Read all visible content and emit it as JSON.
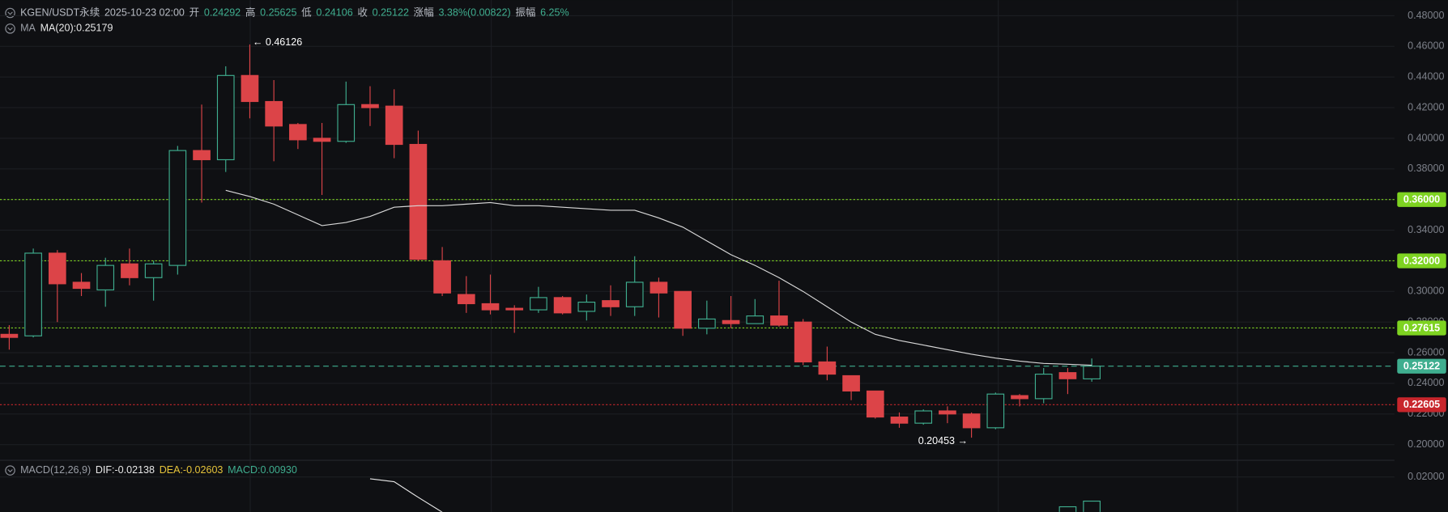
{
  "chart_data": {
    "type": "candlestick",
    "header": [
      {
        "text": "KGEN/USDT永续",
        "color": "#b8bcc4"
      },
      {
        "text": "2025-10-23 02:00",
        "color": "#b8bcc4"
      },
      {
        "text": "开",
        "color": "#b8bcc4"
      },
      {
        "text": "0.24292",
        "color": "#3fae8f"
      },
      {
        "text": "高",
        "color": "#b8bcc4"
      },
      {
        "text": "0.25625",
        "color": "#3fae8f"
      },
      {
        "text": "低",
        "color": "#b8bcc4"
      },
      {
        "text": "0.24106",
        "color": "#3fae8f"
      },
      {
        "text": "收",
        "color": "#b8bcc4"
      },
      {
        "text": "0.25122",
        "color": "#3fae8f"
      },
      {
        "text": "涨幅",
        "color": "#b8bcc4"
      },
      {
        "text": "3.38%(0.00822)",
        "color": "#3fae8f"
      },
      {
        "text": "振幅",
        "color": "#b8bcc4"
      },
      {
        "text": "6.25%",
        "color": "#3fae8f"
      }
    ],
    "ma_header": [
      {
        "text": "MA",
        "color": "#9a9ea6"
      },
      {
        "text": "MA(20):0.25179",
        "color": "#e8e8e8"
      }
    ],
    "up_color": "#3fae8f",
    "down_color": "#dc4448",
    "ma_color": "#d8d8d8",
    "open": [
      0.272,
      0.271,
      0.325,
      0.306,
      0.301,
      0.318,
      0.309,
      0.317,
      0.392,
      0.386,
      0.441,
      0.424,
      0.409,
      0.4,
      0.398,
      0.422,
      0.421,
      0.396,
      0.32,
      0.298,
      0.292,
      0.289,
      0.288,
      0.296,
      0.287,
      0.294,
      0.29,
      0.306,
      0.3,
      0.276,
      0.281,
      0.279,
      0.284,
      0.28,
      0.254,
      0.245,
      0.235,
      0.218,
      0.214,
      0.222,
      0.22,
      0.211,
      0.232,
      0.23,
      0.247,
      0.24292
    ],
    "high": [
      0.278,
      0.328,
      0.327,
      0.312,
      0.322,
      0.328,
      0.32,
      0.395,
      0.422,
      0.447,
      0.46126,
      0.438,
      0.41,
      0.41,
      0.437,
      0.434,
      0.432,
      0.405,
      0.329,
      0.31,
      0.311,
      0.291,
      0.303,
      0.297,
      0.298,
      0.304,
      0.323,
      0.309,
      0.3,
      0.294,
      0.297,
      0.295,
      0.307,
      0.282,
      0.264,
      0.245,
      0.235,
      0.221,
      0.223,
      0.225,
      0.221,
      0.234,
      0.233,
      0.25,
      0.25,
      0.25625
    ],
    "low": [
      0.262,
      0.27,
      0.28,
      0.297,
      0.29,
      0.304,
      0.294,
      0.311,
      0.358,
      0.378,
      0.413,
      0.385,
      0.393,
      0.363,
      0.397,
      0.408,
      0.387,
      0.32,
      0.297,
      0.286,
      0.285,
      0.273,
      0.286,
      0.285,
      0.281,
      0.284,
      0.284,
      0.283,
      0.271,
      0.272,
      0.276,
      0.279,
      0.277,
      0.252,
      0.242,
      0.229,
      0.217,
      0.211,
      0.213,
      0.214,
      0.20453,
      0.21,
      0.225,
      0.227,
      0.233,
      0.24106
    ],
    "close": [
      0.27,
      0.325,
      0.305,
      0.302,
      0.317,
      0.309,
      0.318,
      0.392,
      0.386,
      0.441,
      0.424,
      0.408,
      0.399,
      0.398,
      0.422,
      0.42,
      0.396,
      0.321,
      0.299,
      0.292,
      0.288,
      0.288,
      0.296,
      0.286,
      0.293,
      0.29,
      0.306,
      0.299,
      0.276,
      0.282,
      0.279,
      0.284,
      0.278,
      0.254,
      0.246,
      0.235,
      0.218,
      0.214,
      0.222,
      0.22,
      0.211,
      0.233,
      0.23,
      0.246,
      0.243,
      0.25122
    ],
    "ma": [
      null,
      null,
      null,
      null,
      null,
      null,
      null,
      null,
      null,
      0.366,
      0.362,
      0.357,
      0.35,
      0.343,
      0.345,
      0.349,
      0.355,
      0.356,
      0.356,
      0.357,
      0.358,
      0.356,
      0.356,
      0.355,
      0.354,
      0.353,
      0.353,
      0.348,
      0.342,
      0.333,
      0.324,
      0.317,
      0.309,
      0.3,
      0.29,
      0.28,
      0.272,
      0.268,
      0.265,
      0.262,
      0.259,
      0.2565,
      0.2545,
      0.253,
      0.2525,
      0.25179
    ],
    "ylim": [
      0.19,
      0.49
    ],
    "yticks": [
      {
        "value": 0.2,
        "label": "0.20000"
      },
      {
        "value": 0.22,
        "label": "0.22000"
      },
      {
        "value": 0.24,
        "label": "0.24000"
      },
      {
        "value": 0.26,
        "label": "0.26000"
      },
      {
        "value": 0.28,
        "label": "0.28000"
      },
      {
        "value": 0.3,
        "label": "0.30000"
      },
      {
        "value": 0.32,
        "label": "0.32000"
      },
      {
        "value": 0.34,
        "label": "0.34000"
      },
      {
        "value": 0.36,
        "label": "0.36000"
      },
      {
        "value": 0.38,
        "label": "0.38000"
      },
      {
        "value": 0.4,
        "label": "0.40000"
      },
      {
        "value": 0.42,
        "label": "0.42000"
      },
      {
        "value": 0.44,
        "label": "0.44000"
      },
      {
        "value": 0.46,
        "label": "0.46000"
      },
      {
        "value": 0.48,
        "label": "0.48000"
      }
    ],
    "levels": [
      {
        "value": 0.36,
        "label": "0.36000",
        "color": "#7ed321",
        "dash": "2,2"
      },
      {
        "value": 0.32,
        "label": "0.32000",
        "color": "#7ed321",
        "dash": "2,2"
      },
      {
        "value": 0.27615,
        "label": "0.27615",
        "color": "#7ed321",
        "dash": "2,2"
      },
      {
        "value": 0.25122,
        "label": "0.25122",
        "color": "#3fae8f",
        "dash": "6,4"
      },
      {
        "value": 0.22605,
        "label": "0.22605",
        "color": "#c8262c",
        "dash": "2,2"
      }
    ],
    "annotations": [
      {
        "text": "← 0.46126",
        "index": 10,
        "value": 0.46126,
        "side": "high"
      },
      {
        "text": "0.20453 →",
        "index": 40,
        "value": 0.20453,
        "side": "low"
      }
    ],
    "macd": {
      "header": [
        {
          "text": "MACD(12,26,9)",
          "color": "#9a9ea6"
        },
        {
          "text": "DIF:-0.02138",
          "color": "#e8e8e8"
        },
        {
          "text": "DEA:-0.02603",
          "color": "#e6c43a"
        },
        {
          "text": "MACD:0.00930",
          "color": "#3fae8f"
        }
      ],
      "ylim": [
        0,
        0.027
      ],
      "yticks": [
        {
          "value": 0.02,
          "label": "0.02000"
        }
      ],
      "dif": [
        null,
        null,
        null,
        null,
        null,
        null,
        null,
        null,
        null,
        null,
        null,
        null,
        null,
        null,
        null,
        0.0192,
        0.0179,
        0.011,
        0.0044,
        null,
        null,
        null,
        null,
        null,
        null,
        null,
        null,
        null,
        null,
        null,
        null,
        null,
        null,
        null,
        null,
        null,
        null,
        null,
        null,
        null,
        null,
        null,
        null,
        null,
        null,
        null
      ],
      "hist_index": [
        44,
        45
      ],
      "hist": [
        0.0068,
        0.0093
      ]
    }
  }
}
